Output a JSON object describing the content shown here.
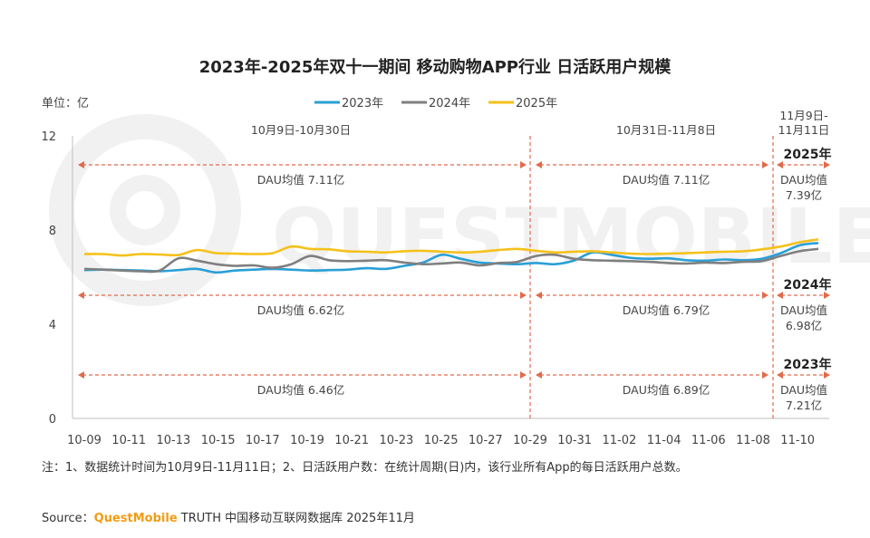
{
  "chart_data": {
    "type": "line",
    "title": "2023年-2025年双十一期间 移动购物APP行业 日活跃用户规模",
    "unit_label": "单位：亿",
    "ylim": [
      0,
      12
    ],
    "yticks": [
      "0",
      "4",
      "8",
      "12"
    ],
    "xtick_labels": [
      "10-09",
      "10-11",
      "10-13",
      "10-15",
      "10-17",
      "10-19",
      "10-21",
      "10-23",
      "10-25",
      "10-27",
      "10-29",
      "10-31",
      "11-02",
      "11-04",
      "11-06",
      "11-08",
      "11-10"
    ],
    "colors": {
      "2023年": "#2a9fd6",
      "2024年": "#7f7f7f",
      "2025年": "#f5c11b",
      "annotation": "#e06b4c"
    },
    "series": [
      {
        "name": "2023年",
        "color": "#2a9fd6",
        "values": [
          6.3,
          6.32,
          6.3,
          6.28,
          6.25,
          6.3,
          6.35,
          6.2,
          6.28,
          6.32,
          6.35,
          6.32,
          6.28,
          6.3,
          6.32,
          6.38,
          6.35,
          6.48,
          6.62,
          6.95,
          6.78,
          6.62,
          6.58,
          6.55,
          6.6,
          6.55,
          6.7,
          7.05,
          6.95,
          6.82,
          6.78,
          6.8,
          6.72,
          6.7,
          6.75,
          6.72,
          6.78,
          7.02,
          7.35,
          7.45
        ]
      },
      {
        "name": "2024年",
        "color": "#7f7f7f",
        "values": [
          6.35,
          6.32,
          6.28,
          6.25,
          6.28,
          6.8,
          6.7,
          6.55,
          6.48,
          6.5,
          6.4,
          6.55,
          6.9,
          6.72,
          6.68,
          6.7,
          6.72,
          6.62,
          6.55,
          6.58,
          6.62,
          6.5,
          6.6,
          6.65,
          6.9,
          6.95,
          6.78,
          6.72,
          6.7,
          6.68,
          6.65,
          6.6,
          6.58,
          6.62,
          6.6,
          6.65,
          6.68,
          6.9,
          7.1,
          7.2
        ]
      },
      {
        "name": "2025年",
        "color": "#f5c11b",
        "values": [
          6.98,
          6.98,
          6.92,
          6.98,
          6.96,
          6.94,
          7.15,
          7.02,
          7.0,
          6.98,
          7.02,
          7.3,
          7.2,
          7.18,
          7.1,
          7.08,
          7.05,
          7.1,
          7.12,
          7.08,
          7.05,
          7.08,
          7.15,
          7.2,
          7.12,
          7.05,
          7.08,
          7.1,
          7.05,
          7.0,
          6.98,
          7.0,
          7.02,
          7.05,
          7.08,
          7.1,
          7.18,
          7.3,
          7.48,
          7.6
        ]
      }
    ],
    "periods": [
      {
        "label": "10月9日-10月30日"
      },
      {
        "label": "10月31日-11月8日"
      },
      {
        "label": "11月9日-\n11月11日"
      }
    ],
    "averages": {
      "2025年": [
        "DAU均值 7.11亿",
        "DAU均值 7.11亿",
        "DAU均值\n7.39亿"
      ],
      "2024年": [
        "DAU均值  6.62亿",
        "DAU均值  6.79亿",
        "DAU均值\n6.98亿"
      ],
      "2023年": [
        "DAU均值  6.46亿",
        "DAU均值  6.89亿",
        "DAU均值\n7.21亿"
      ]
    },
    "year_tags": [
      "2025年",
      "2024年",
      "2023年"
    ],
    "legend_position": "top-center",
    "grid": false
  },
  "footnote": "注：1、数据统计时间为10月9日-11月11日；2、日活跃用户数：在统计周期(日)内，该行业所有App的每日活跃用户总数。",
  "source": {
    "prefix": "Source：",
    "brand": "QuestMobile",
    "suffix": " TRUTH 中国移动互联网数据库 2025年11月"
  },
  "watermark": "QUESTMOBILE"
}
